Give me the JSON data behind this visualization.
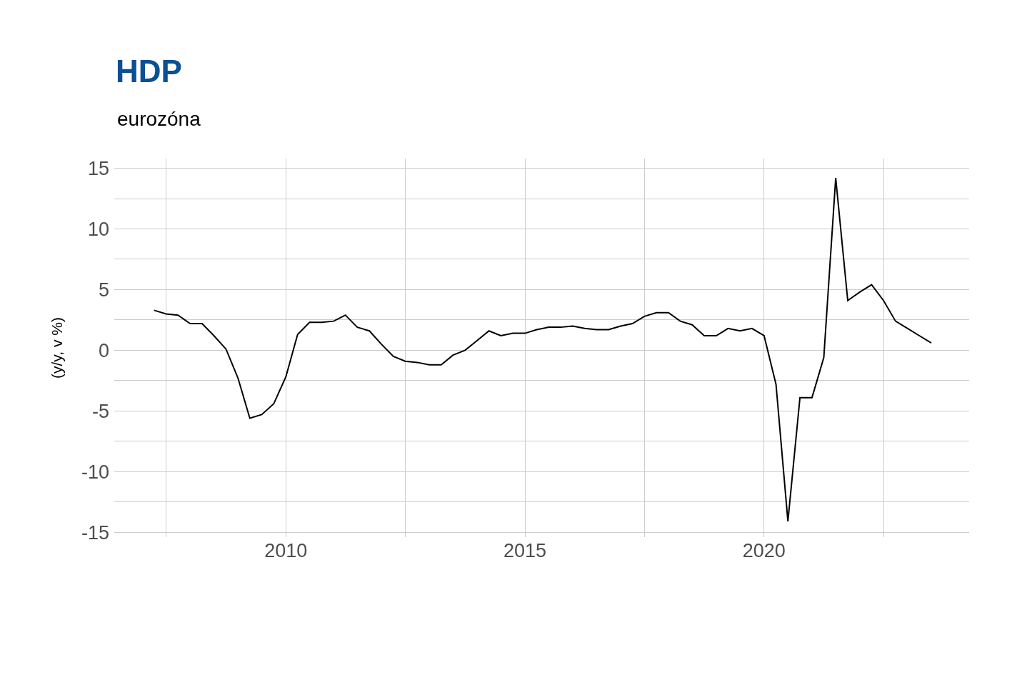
{
  "chart_data": {
    "type": "line",
    "title": "HDP",
    "subtitle": "eurozóna",
    "ylabel": "(y/y, v %)",
    "x": [
      "2007-04-01",
      "2007-07-01",
      "2007-10-01",
      "2008-01-01",
      "2008-04-01",
      "2008-07-01",
      "2008-10-01",
      "2009-01-01",
      "2009-04-01",
      "2009-07-01",
      "2009-10-01",
      "2010-01-01",
      "2010-04-01",
      "2010-07-01",
      "2010-10-01",
      "2011-01-01",
      "2011-04-01",
      "2011-07-01",
      "2011-10-01",
      "2012-01-01",
      "2012-04-01",
      "2012-07-01",
      "2012-10-01",
      "2013-01-01",
      "2013-04-01",
      "2013-07-01",
      "2013-10-01",
      "2014-01-01",
      "2014-04-01",
      "2014-07-01",
      "2014-10-01",
      "2015-01-01",
      "2015-04-01",
      "2015-07-01",
      "2015-10-01",
      "2016-01-01",
      "2016-04-01",
      "2016-07-01",
      "2016-10-01",
      "2017-01-01",
      "2017-04-01",
      "2017-07-01",
      "2017-10-01",
      "2018-01-01",
      "2018-04-01",
      "2018-07-01",
      "2018-10-01",
      "2019-01-01",
      "2019-04-01",
      "2019-07-01",
      "2019-10-01",
      "2020-01-01",
      "2020-04-01",
      "2020-07-01",
      "2020-10-01",
      "2021-01-01",
      "2021-04-01",
      "2021-07-01",
      "2021-10-01",
      "2022-01-01",
      "2022-04-01",
      "2022-07-01",
      "2022-10-01",
      "2023-01-01",
      "2023-04-01",
      "2023-07-01"
    ],
    "series": [
      {
        "color": "#000000",
        "values": [
          3.3,
          3.0,
          2.9,
          2.2,
          2.2,
          1.2,
          0.1,
          -2.3,
          -5.6,
          -5.3,
          -4.4,
          -2.2,
          1.3,
          2.3,
          2.3,
          2.4,
          2.9,
          1.9,
          1.6,
          0.5,
          -0.5,
          -0.9,
          -1.0,
          -1.2,
          -1.2,
          -0.4,
          0.0,
          0.8,
          1.6,
          1.2,
          1.4,
          1.4,
          1.7,
          1.9,
          1.9,
          2.0,
          1.8,
          1.7,
          1.7,
          2.0,
          2.2,
          2.8,
          3.1,
          3.1,
          2.4,
          2.1,
          1.2,
          1.2,
          1.8,
          1.6,
          1.8,
          1.2,
          -2.8,
          -14.1,
          -3.9,
          -3.9,
          -0.6,
          14.2,
          4.1,
          4.8,
          5.4,
          4.1,
          2.4,
          1.8,
          1.2,
          0.6
        ]
      }
    ],
    "xlim": [
      "2006-06-01",
      "2024-04-15"
    ],
    "xticks": [
      {
        "value": "2007-07-01",
        "label": null
      },
      {
        "value": "2010-01-01",
        "label": "2010"
      },
      {
        "value": "2012-07-01",
        "label": null
      },
      {
        "value": "2015-01-01",
        "label": "2015"
      },
      {
        "value": "2017-07-01",
        "label": null
      },
      {
        "value": "2020-01-01",
        "label": "2020"
      },
      {
        "value": "2022-07-01",
        "label": null
      }
    ],
    "ylim": [
      -15.4,
      15.8
    ],
    "yticks": [
      -15,
      {
        "value": -12.5,
        "label": null
      },
      -10,
      {
        "value": -7.5,
        "label": null
      },
      -5,
      {
        "value": -2.5,
        "label": null
      },
      0,
      {
        "value": 2.5,
        "label": null
      },
      5,
      {
        "value": 7.5,
        "label": null
      },
      10,
      {
        "value": 12.5,
        "label": null
      },
      15
    ],
    "grid": true
  }
}
